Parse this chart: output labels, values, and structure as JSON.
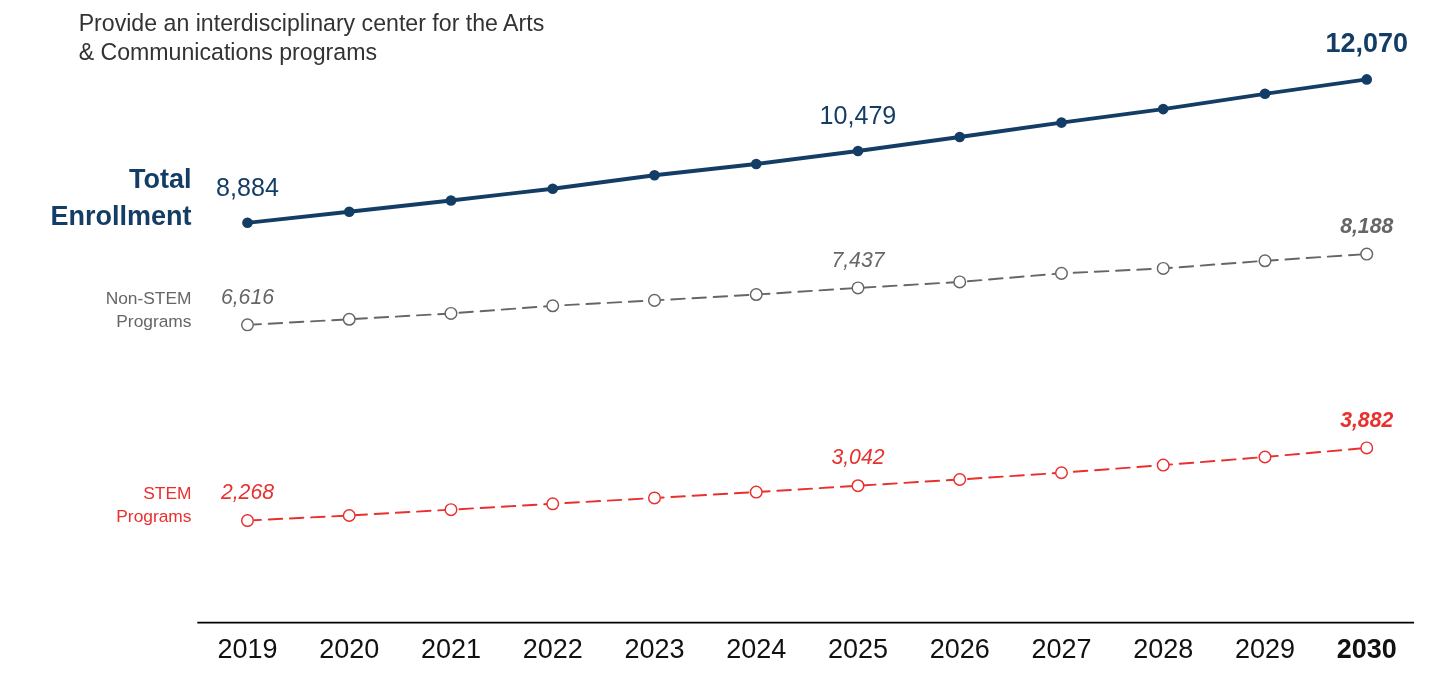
{
  "chart_data": {
    "type": "line",
    "annotations": [
      "Provide an interdisciplinary center for the Arts & Communications programs"
    ],
    "categories": [
      "2019",
      "2020",
      "2021",
      "2022",
      "2023",
      "2024",
      "2025",
      "2026",
      "2027",
      "2028",
      "2029",
      "2030"
    ],
    "marker": "circle",
    "series": [
      {
        "name": "Total Enrollment",
        "color": "#143d66",
        "line_style": "solid",
        "values": [
          8884,
          9130,
          9380,
          9640,
          9940,
          10190,
          10479,
          10790,
          11110,
          11410,
          11750,
          12070
        ],
        "value_labels": [
          "8,884",
          null,
          null,
          null,
          null,
          null,
          "10,479",
          null,
          null,
          null,
          null,
          "12,070"
        ]
      },
      {
        "name": "Non-STEM Programs",
        "color": "#666666",
        "line_style": "dashed",
        "values": [
          6616,
          6740,
          6870,
          7040,
          7160,
          7290,
          7437,
          7570,
          7760,
          7870,
          8040,
          8188
        ],
        "value_labels": [
          "6,616",
          null,
          null,
          null,
          null,
          null,
          "7,437",
          null,
          null,
          null,
          null,
          "8,188"
        ]
      },
      {
        "name": "STEM Programs",
        "color": "#e8302e",
        "line_style": "dashed",
        "values": [
          2268,
          2380,
          2510,
          2640,
          2770,
          2900,
          3042,
          3180,
          3330,
          3500,
          3680,
          3882
        ],
        "value_labels": [
          "2,268",
          null,
          null,
          null,
          null,
          null,
          "3,042",
          null,
          null,
          null,
          null,
          "3,882"
        ]
      }
    ]
  }
}
